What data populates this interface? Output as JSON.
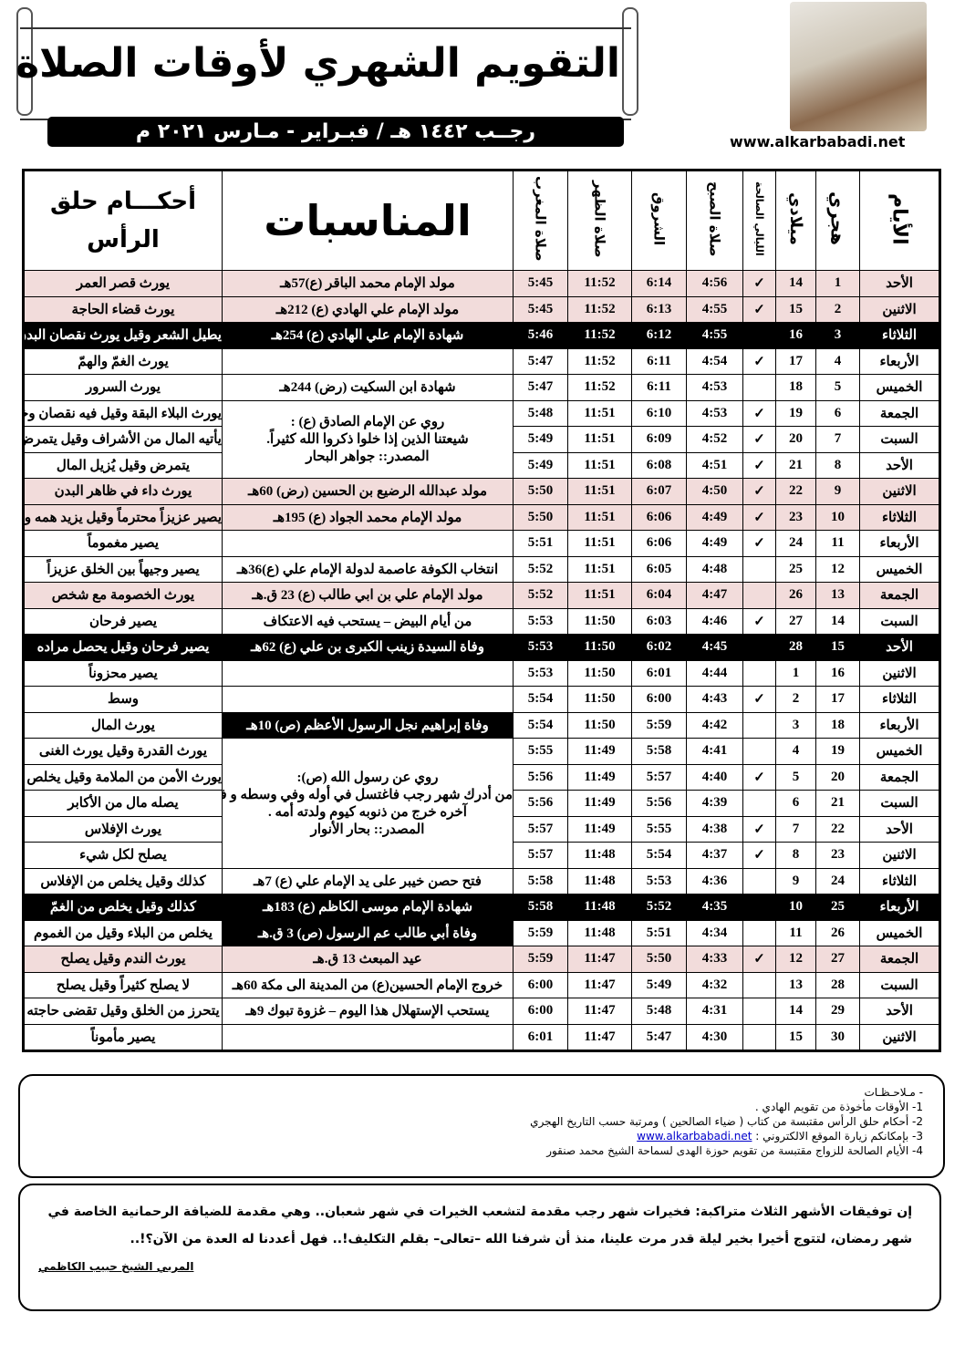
{
  "header": {
    "title": "التقويم الشهري لأوقات الصلاة",
    "subtitle": "رجــب ١٤٤٢ هـ / فبـراير - مـارس ٢٠٢١ م",
    "website": "www.alkarbabadi.net"
  },
  "columns": {
    "day": "الأيام",
    "hijri": "هجري",
    "gregorian": "ميلادي",
    "nights": "الليالي الصالحة",
    "fajr": "صلاة الصبح",
    "sunrise": "الشروق",
    "dhuhr": "صلاة الظهر",
    "maghrib": "صلاة المغرب",
    "events": "المناسبات",
    "hair": "أحكـــام حلق الرأس"
  },
  "check_mark": "✓",
  "blocks": [
    {
      "start": 6,
      "span": 3,
      "lines": [
        "روي عن الإمام الصادق (ع) :",
        "شيعتنا الذين إذا خلوا ذكروا الله كثيراً.",
        "المصدر:: جواهر البحار"
      ]
    },
    {
      "start": 19,
      "span": 5,
      "lines": [
        "روي عن رسول الله (ص):",
        "من أدرك شهر رجب فاغتسل في أوله وفي وسطه و في",
        "آخره خرج من ذنوبه كيوم ولدته أمه .",
        "المصدر:: بحار الأنوار"
      ]
    }
  ],
  "rows": [
    {
      "day": "الأحد",
      "h": "1",
      "g": "14",
      "n": true,
      "fajr": "4:56",
      "sun": "6:14",
      "dhuhr": "11:52",
      "mag": "5:45",
      "event": "مولد الإمام محمد الباقر (ع)57هـ",
      "hair": "يورث قصر العمر",
      "style": "pink"
    },
    {
      "day": "الاثنين",
      "h": "2",
      "g": "15",
      "n": true,
      "fajr": "4:55",
      "sun": "6:13",
      "dhuhr": "11:52",
      "mag": "5:45",
      "event": "مولد الإمام علي الهادي (ع) 212هـ",
      "hair": "يورث قضاء الحاجة",
      "style": "pink"
    },
    {
      "day": "الثلاثاء",
      "h": "3",
      "g": "16",
      "n": false,
      "fajr": "4:55",
      "sun": "6:12",
      "dhuhr": "11:52",
      "mag": "5:46",
      "event": "شهادة الإمام علي الهادي (ع) 254هـ",
      "hair": "يطيل الشعر وقيل يورث نقصان البدن",
      "style": "black",
      "small": true
    },
    {
      "day": "الأربعاء",
      "h": "4",
      "g": "17",
      "n": true,
      "fajr": "4:54",
      "sun": "6:11",
      "dhuhr": "11:52",
      "mag": "5:47",
      "event": "",
      "hair": "يورث الغمّ والهمّ"
    },
    {
      "day": "الخميس",
      "h": "5",
      "g": "18",
      "n": false,
      "fajr": "4:53",
      "sun": "6:11",
      "dhuhr": "11:52",
      "mag": "5:47",
      "event": "شهادة ابن السكيت (رض) 244هـ",
      "hair": "يورث السرور"
    },
    {
      "day": "الجمعة",
      "h": "6",
      "g": "19",
      "n": true,
      "fajr": "4:53",
      "sun": "6:10",
      "dhuhr": "11:51",
      "mag": "5:48",
      "hair": "يورث البلاء البقة وقيل فيه نقصان وخطر",
      "small": true
    },
    {
      "day": "السبت",
      "h": "7",
      "g": "20",
      "n": true,
      "fajr": "4:52",
      "sun": "6:09",
      "dhuhr": "11:51",
      "mag": "5:49",
      "hair": "يأتيه المال من الأشراف وقيل يتمرض",
      "small": true
    },
    {
      "day": "الأحد",
      "h": "8",
      "g": "21",
      "n": true,
      "fajr": "4:51",
      "sun": "6:08",
      "dhuhr": "11:51",
      "mag": "5:49",
      "hair": "يتمرض وقيل يُزيل المال"
    },
    {
      "day": "الاثنين",
      "h": "9",
      "g": "22",
      "n": true,
      "fajr": "4:50",
      "sun": "6:07",
      "dhuhr": "11:51",
      "mag": "5:50",
      "event": "مولد عبدالله الرضيع بن الحسين (رض) 60هـ",
      "hair": "يورث داء في ظاهر البدن",
      "style": "pink"
    },
    {
      "day": "الثلاثاء",
      "h": "10",
      "g": "23",
      "n": true,
      "fajr": "4:49",
      "sun": "6:06",
      "dhuhr": "11:51",
      "mag": "5:50",
      "event": "مولد الإمام محمد الجواد (ع) 195هـ",
      "hair": "يصير عزيزاً محترماً وقيل يزيد همه وغمه",
      "style": "pink",
      "small": true
    },
    {
      "day": "الأربعاء",
      "h": "11",
      "g": "24",
      "n": true,
      "fajr": "4:49",
      "sun": "6:06",
      "dhuhr": "11:51",
      "mag": "5:51",
      "event": "",
      "hair": "يصير مغموماً"
    },
    {
      "day": "الخميس",
      "h": "12",
      "g": "25",
      "n": false,
      "fajr": "4:48",
      "sun": "6:05",
      "dhuhr": "11:51",
      "mag": "5:52",
      "event": "انتخاب الكوفة عاصمة لدولة الإمام علي (ع)36هـ",
      "hair": "يصير وجيهاً بين الخلق عزيزاً"
    },
    {
      "day": "الجمعة",
      "h": "13",
      "g": "26",
      "n": false,
      "fajr": "4:47",
      "sun": "6:04",
      "dhuhr": "11:51",
      "mag": "5:52",
      "event": "مولد الإمام علي بن ابي طالب (ع) 23 ق.هـ",
      "hair": "يورث الخصومة مع شخص",
      "style": "pink"
    },
    {
      "day": "السبت",
      "h": "14",
      "g": "27",
      "n": true,
      "fajr": "4:46",
      "sun": "6:03",
      "dhuhr": "11:50",
      "mag": "5:53",
      "event": "من أيام البيض – يستحب فيه الاعتكاف",
      "hair": "يصير فرحان"
    },
    {
      "day": "الأحد",
      "h": "15",
      "g": "28",
      "n": false,
      "fajr": "4:45",
      "sun": "6:02",
      "dhuhr": "11:50",
      "mag": "5:53",
      "event": "وفاة السيدة زينب الكبرى بن علي (ع) 62هـ",
      "hair": "يصير فرحان وقيل يحصل مراده",
      "style": "black"
    },
    {
      "day": "الاثنين",
      "h": "16",
      "g": "1",
      "n": false,
      "fajr": "4:44",
      "sun": "6:01",
      "dhuhr": "11:50",
      "mag": "5:53",
      "event": "",
      "hair": "يصير محزوناً"
    },
    {
      "day": "الثلاثاء",
      "h": "17",
      "g": "2",
      "n": true,
      "fajr": "4:43",
      "sun": "6:00",
      "dhuhr": "11:50",
      "mag": "5:54",
      "event": "",
      "hair": "وسط"
    },
    {
      "day": "الأربعاء",
      "h": "18",
      "g": "3",
      "n": false,
      "fajr": "4:42",
      "sun": "5:59",
      "dhuhr": "11:50",
      "mag": "5:54",
      "event": "وفاة إبراهيم نجل الرسول الأعظم (ص) 10هـ",
      "hair": "يورث المال",
      "event_style": "black"
    },
    {
      "day": "الخميس",
      "h": "19",
      "g": "4",
      "n": false,
      "fajr": "4:41",
      "sun": "5:58",
      "dhuhr": "11:49",
      "mag": "5:55",
      "hair": "يورث القدرة وقيل يورث الغنى"
    },
    {
      "day": "الجمعة",
      "h": "20",
      "g": "5",
      "n": true,
      "fajr": "4:40",
      "sun": "5:57",
      "dhuhr": "11:49",
      "mag": "5:56",
      "hair": "يورث الأمن من الملامة وقيل يخلص من الغم",
      "small": true
    },
    {
      "day": "السبت",
      "h": "21",
      "g": "6",
      "n": false,
      "fajr": "4:39",
      "sun": "5:56",
      "dhuhr": "11:49",
      "mag": "5:56",
      "hair": "يصله مال من الأكابر"
    },
    {
      "day": "الأحد",
      "h": "22",
      "g": "7",
      "n": true,
      "fajr": "4:38",
      "sun": "5:55",
      "dhuhr": "11:49",
      "mag": "5:57",
      "hair": "يورث الإفلاس"
    },
    {
      "day": "الاثنين",
      "h": "23",
      "g": "8",
      "n": true,
      "fajr": "4:37",
      "sun": "5:54",
      "dhuhr": "11:48",
      "mag": "5:57",
      "hair": "يصلح لكل شيء"
    },
    {
      "day": "الثلاثاء",
      "h": "24",
      "g": "9",
      "n": false,
      "fajr": "4:36",
      "sun": "5:53",
      "dhuhr": "11:48",
      "mag": "5:58",
      "event": "فتح حصن خيبر على يد الإمام علي (ع) 7هـ",
      "hair": "كذلك وقيل يخلص من الإفلاس"
    },
    {
      "day": "الأربعاء",
      "h": "25",
      "g": "10",
      "n": false,
      "fajr": "4:35",
      "sun": "5:52",
      "dhuhr": "11:48",
      "mag": "5:58",
      "event": "شهادة الإمام موسى الكاظم (ع) 183هـ",
      "hair": "كذلك وقيل يخلص من الغمّ",
      "style": "black"
    },
    {
      "day": "الخميس",
      "h": "26",
      "g": "11",
      "n": false,
      "fajr": "4:34",
      "sun": "5:51",
      "dhuhr": "11:48",
      "mag": "5:59",
      "event": "وفاة أبي طالب عم الرسول (ص) 3 ق.هـ",
      "hair": "يخلص من البلاء وقيل من الغموم",
      "event_style": "black"
    },
    {
      "day": "الجمعة",
      "h": "27",
      "g": "12",
      "n": true,
      "fajr": "4:33",
      "sun": "5:50",
      "dhuhr": "11:47",
      "mag": "5:59",
      "event": "عيد المبعث 13 ق.هـ",
      "hair": "يورث الندم وقيل يصلح",
      "style": "pink"
    },
    {
      "day": "السبت",
      "h": "28",
      "g": "13",
      "n": false,
      "fajr": "4:32",
      "sun": "5:49",
      "dhuhr": "11:47",
      "mag": "6:00",
      "event": "خروج الإمام الحسين(ع) من المدينة الى مكة 60هـ",
      "hair": "لا يصلح كثيراً وقيل يصلح"
    },
    {
      "day": "الأحد",
      "h": "29",
      "g": "14",
      "n": false,
      "fajr": "4:31",
      "sun": "5:48",
      "dhuhr": "11:47",
      "mag": "6:00",
      "event": "يستحب الإستهلال هذا اليوم – غزوة تبوك 9هـ",
      "hair": "يتحرز من الخلق وقيل تقضى حاجته"
    },
    {
      "day": "الاثنين",
      "h": "30",
      "g": "15",
      "n": false,
      "fajr": "4:30",
      "sun": "5:47",
      "dhuhr": "11:47",
      "mag": "6:01",
      "event": "",
      "hair": "يصير مأموناً"
    }
  ],
  "notes": {
    "heading": "-   مـلاحـظـات",
    "items": [
      "1- الأوقات مأخوذة من تقويم الهادي .",
      "2- أحكام حلق الرأس مقتبسة من كتاب ( ضياء الصالحين ) ومرتبة حسب التاريخ الهجري",
      "3- بإمكانكم زيارة الموقع الالكتروني :",
      "4-  الأيام الصالحة للزواج مقتبسة من تقويم حوزة الهدى لسماحة الشيخ محمد صنقور"
    ],
    "link": "www.alkarbabadi.net"
  },
  "quote": {
    "text": "إن توفيقات الأشهر الثلاث متراكبة: فخيرات شهر رجب مقدمة لتشعب الخيرات في شهر شعبان.. وهي مقدمة للضيافة الرحمانية الخاصة في شهر رمضان، لتتوج أخيرا بخير ليلة قدر مرت علينا، منذ أن شرفنا الله –تعالى– بقلم التكليف!.. فهل أعددنا له العدة من الآن؟!..",
    "signature": "المربي الشيخ حبيب الكاظمي"
  }
}
